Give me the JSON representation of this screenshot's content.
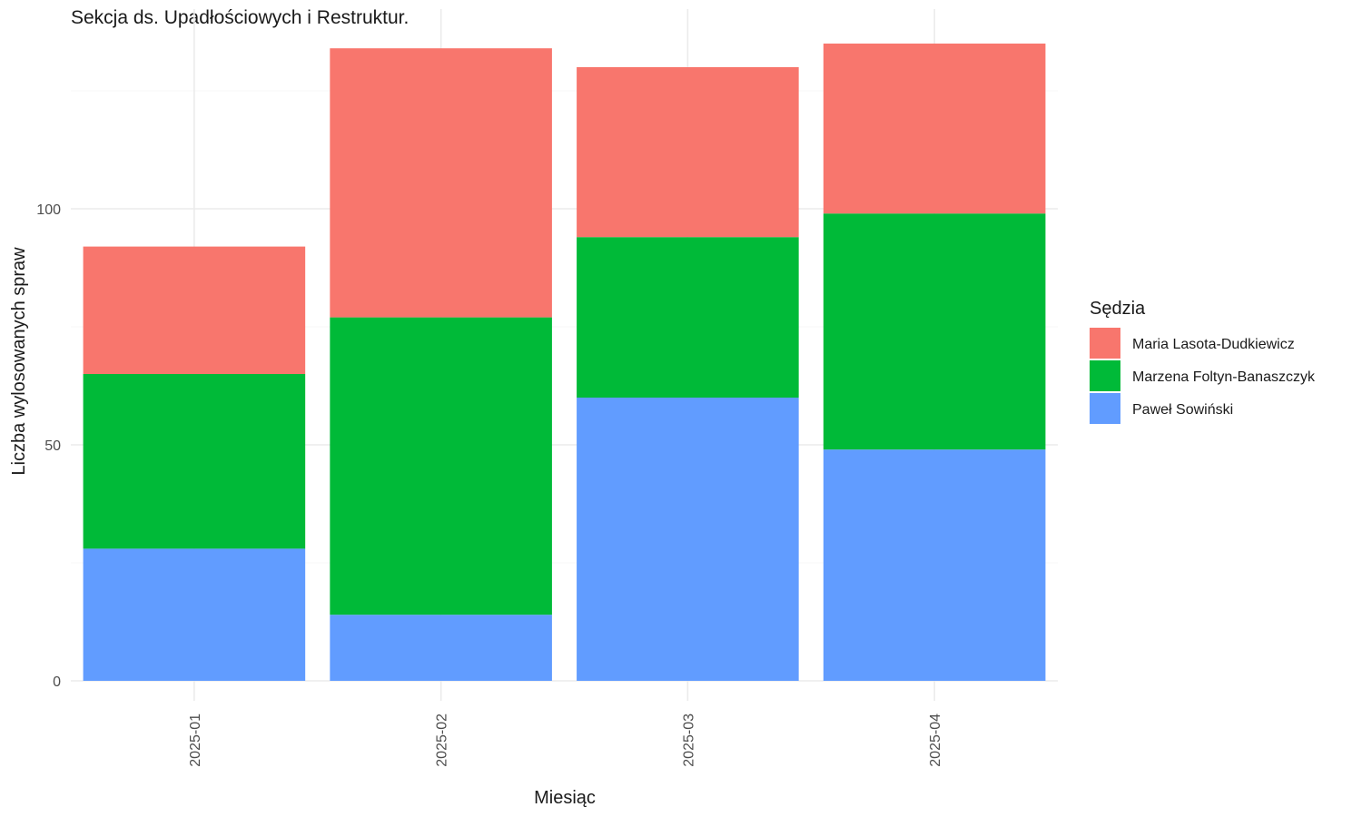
{
  "chart_data": {
    "type": "bar",
    "stacked": true,
    "title": "Sekcja ds. Upadłościowych i Restruktur.",
    "xlabel": "Miesiąc",
    "ylabel": "Liczba wylosowanych spraw",
    "categories": [
      "2025-01",
      "2025-02",
      "2025-03",
      "2025-04"
    ],
    "ylim": [
      0,
      142
    ],
    "yticks": [
      0,
      50,
      100
    ],
    "grid": true,
    "legend_title": "Sędzia",
    "legend_position": "right",
    "series": [
      {
        "name": "Paweł Sowiński",
        "color": "#619CFF",
        "values": [
          28,
          14,
          60,
          49
        ]
      },
      {
        "name": "Marzena Foltyn-Banaszczyk",
        "color": "#00BA38",
        "values": [
          37,
          63,
          34,
          50
        ]
      },
      {
        "name": "Maria Lasota-Dudkiewicz",
        "color": "#F8766D",
        "values": [
          27,
          57,
          36,
          36
        ]
      }
    ],
    "legend_order": [
      "Maria Lasota-Dudkiewicz",
      "Marzena Foltyn-Banaszczyk",
      "Paweł Sowiński"
    ]
  }
}
